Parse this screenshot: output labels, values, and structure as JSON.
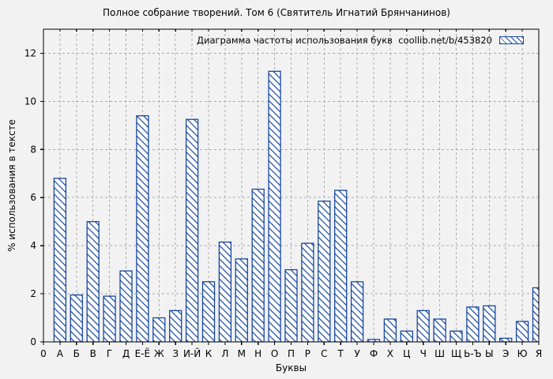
{
  "chart_data": {
    "type": "bar",
    "title": "Полное собрание творений. Том 6 (Святитель Игнатий Брянчанинов)",
    "categories": [
      "А",
      "Б",
      "В",
      "Г",
      "Д",
      "Е-Ё",
      "Ж",
      "З",
      "И-Й",
      "К",
      "Л",
      "М",
      "Н",
      "О",
      "П",
      "Р",
      "С",
      "Т",
      "У",
      "Ф",
      "Х",
      "Ц",
      "Ч",
      "Ш",
      "Щ",
      "Ь-Ъ",
      "Ы",
      "Э",
      "Ю",
      "Я"
    ],
    "values": [
      6.8,
      1.95,
      5.0,
      1.9,
      2.95,
      9.4,
      1.0,
      1.3,
      9.25,
      2.5,
      4.15,
      3.45,
      6.35,
      11.25,
      3.0,
      4.1,
      5.85,
      6.3,
      2.5,
      0.1,
      0.95,
      0.45,
      1.3,
      0.95,
      0.45,
      1.45,
      1.5,
      0.15,
      0.85,
      2.25
    ],
    "xlabel": "Буквы",
    "ylabel": "% использования в тексте",
    "x_origin_label": "0",
    "ylim": [
      0,
      13
    ],
    "y_ticks": [
      0,
      2,
      4,
      6,
      8,
      10,
      12
    ],
    "grid": true,
    "legend": {
      "label": "Диаграмма частоты использования букв  coollib.net/b/453820",
      "position": "top-right-inside",
      "swatch": "hatched"
    },
    "style": {
      "bar_color": "#1546a0",
      "bar_fill": "#ffffff",
      "hatch": "diagonal-backslash",
      "background": "#f2f2f2",
      "grid_color": "#ababab",
      "border_color": "#000000"
    }
  }
}
